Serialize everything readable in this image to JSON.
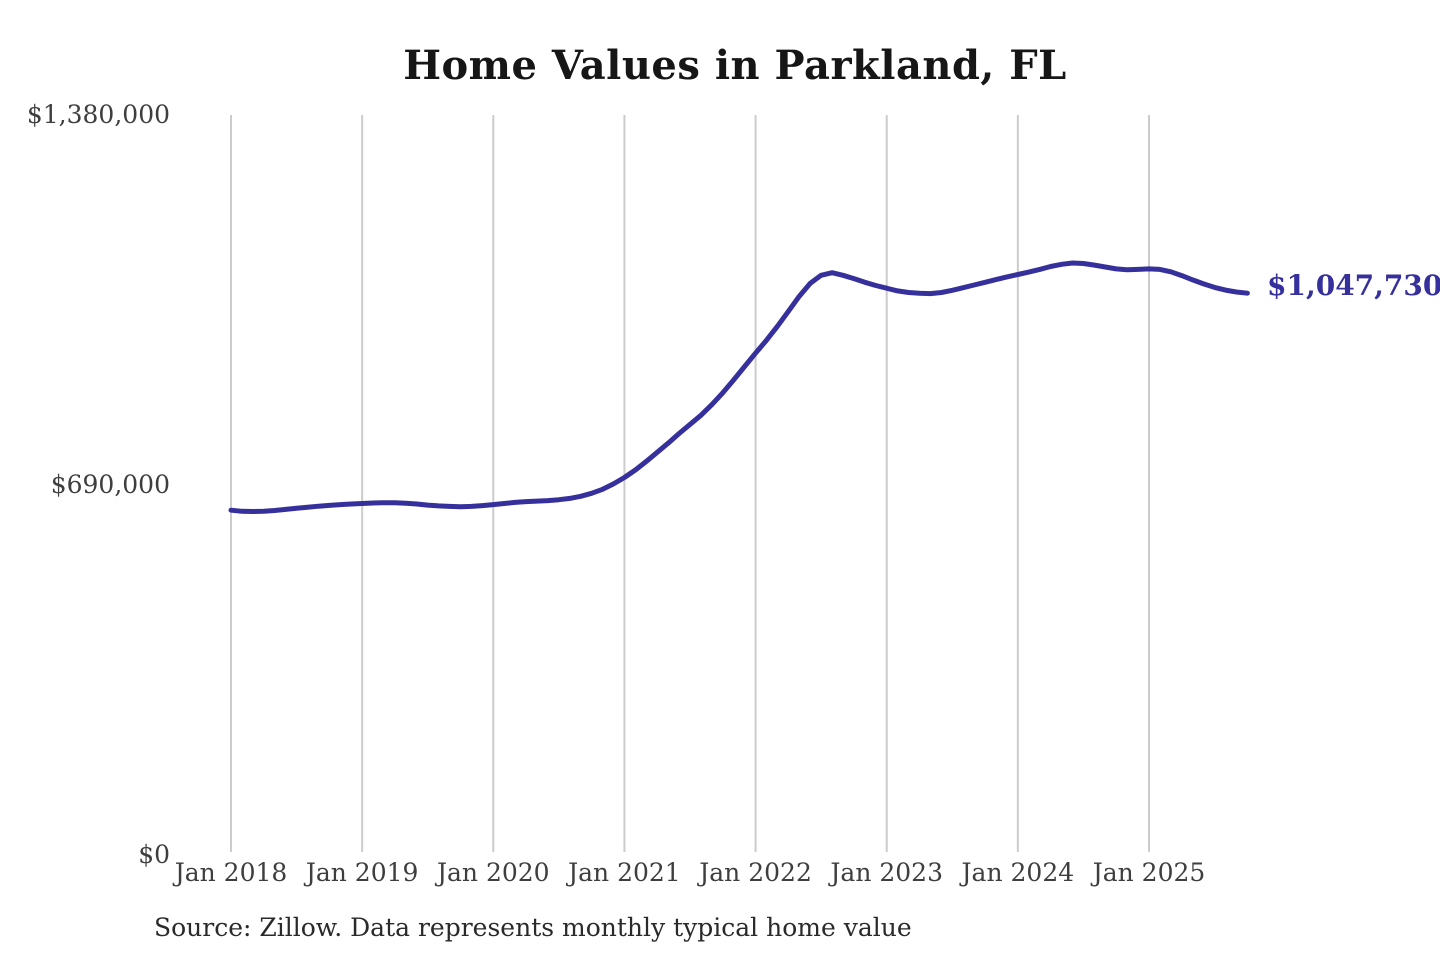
{
  "title": "Home Values in Parkland, FL",
  "source_note": "Source: Zillow. Data represents monthly typical home value",
  "end_label": "$1,047,730",
  "colors": {
    "line": "#36309c",
    "grid": "#cccccc",
    "axis_text": "#3e3e3e",
    "title_text": "#161616",
    "source_text": "#2a2a2a",
    "background": "#ffffff"
  },
  "chart_data": {
    "type": "line",
    "title": "Home Values in Parkland, FL",
    "xlabel": "",
    "ylabel": "",
    "ylim": [
      0,
      1380000
    ],
    "y_tick_values": [
      0,
      690000,
      1380000
    ],
    "y_tick_labels": [
      "$0",
      "$690,000",
      "$1,380,000"
    ],
    "x_tick_labels": [
      "Jan 2018",
      "Jan 2019",
      "Jan 2020",
      "Jan 2021",
      "Jan 2022",
      "Jan 2023",
      "Jan 2024",
      "Jan 2025"
    ],
    "grid": "vertical",
    "legend": "none",
    "end_annotation": "$1,047,730",
    "x": [
      "2018-01",
      "2018-02",
      "2018-03",
      "2018-04",
      "2018-05",
      "2018-06",
      "2018-07",
      "2018-08",
      "2018-09",
      "2018-10",
      "2018-11",
      "2018-12",
      "2019-01",
      "2019-02",
      "2019-03",
      "2019-04",
      "2019-05",
      "2019-06",
      "2019-07",
      "2019-08",
      "2019-09",
      "2019-10",
      "2019-11",
      "2019-12",
      "2020-01",
      "2020-02",
      "2020-03",
      "2020-04",
      "2020-05",
      "2020-06",
      "2020-07",
      "2020-08",
      "2020-09",
      "2020-10",
      "2020-11",
      "2020-12",
      "2021-01",
      "2021-02",
      "2021-03",
      "2021-04",
      "2021-05",
      "2021-06",
      "2021-07",
      "2021-08",
      "2021-09",
      "2021-10",
      "2021-11",
      "2021-12",
      "2022-01",
      "2022-02",
      "2022-03",
      "2022-04",
      "2022-05",
      "2022-06",
      "2022-07",
      "2022-08",
      "2022-09",
      "2022-10",
      "2022-11",
      "2022-12",
      "2023-01",
      "2023-02",
      "2023-03",
      "2023-04",
      "2023-05",
      "2023-06",
      "2023-07",
      "2023-08",
      "2023-09",
      "2023-10",
      "2023-11",
      "2023-12",
      "2024-01",
      "2024-02",
      "2024-03",
      "2024-04",
      "2024-05",
      "2024-06",
      "2024-07",
      "2024-08",
      "2024-09",
      "2024-10",
      "2024-11",
      "2024-12",
      "2025-01",
      "2025-02",
      "2025-03",
      "2025-04",
      "2025-05",
      "2025-06",
      "2025-07",
      "2025-08",
      "2025-09",
      "2025-10"
    ],
    "values": [
      643000,
      641000,
      640500,
      641000,
      642500,
      644500,
      646500,
      648500,
      650500,
      652000,
      653500,
      654500,
      655500,
      656500,
      657000,
      657000,
      656000,
      654500,
      652500,
      651000,
      650000,
      649500,
      650000,
      651500,
      653500,
      655500,
      657500,
      659000,
      660000,
      661000,
      662500,
      665000,
      669000,
      674500,
      682000,
      692000,
      704000,
      718000,
      734000,
      751000,
      768000,
      786000,
      803000,
      820000,
      840000,
      862000,
      886000,
      911000,
      936000,
      960000,
      986000,
      1014000,
      1042000,
      1066000,
      1081000,
      1086000,
      1081000,
      1075000,
      1068000,
      1062000,
      1057000,
      1052000,
      1049000,
      1047500,
      1047000,
      1049000,
      1053000,
      1058000,
      1063000,
      1068000,
      1073000,
      1078000,
      1082500,
      1087000,
      1092000,
      1097500,
      1101500,
      1104000,
      1103000,
      1100000,
      1096500,
      1093000,
      1091500,
      1092000,
      1093000,
      1092000,
      1087500,
      1080500,
      1072500,
      1065000,
      1058500,
      1053500,
      1050000,
      1047730
    ]
  }
}
